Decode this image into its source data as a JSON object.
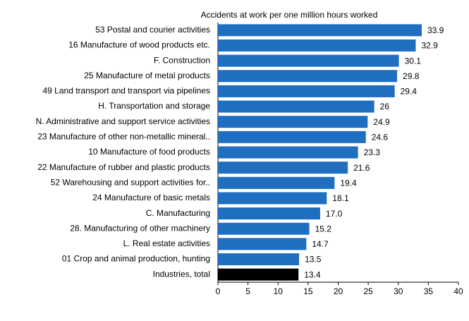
{
  "chart_data": {
    "type": "hbar",
    "x_label": "Accidents at work per one million hours worked",
    "categories": [
      "53 Postal and courier activities",
      "16 Manufacture of wood products etc.",
      "F. Construction",
      "25 Manufacture of metal products",
      "49 Land transport and transport via pipelines",
      "H. Transportation and storage",
      "N. Administrative and support service activities",
      "23 Manufacture of other non-metallic mineral..",
      "10 Manufacture of food products",
      "22 Manufacture of rubber and plastic products",
      "52 Warehousing and support activities for..",
      "24 Manufacture of basic metals",
      "C. Manufacturing",
      "28. Manufacturing of other machinery",
      "L. Real estate activities",
      "01 Crop and animal production, hunting",
      "Industries, total"
    ],
    "values": [
      33.9,
      32.9,
      30.1,
      29.8,
      29.4,
      26,
      24.9,
      24.6,
      23.3,
      21.6,
      19.4,
      18.1,
      17,
      15.2,
      14.7,
      13.5,
      13.4
    ],
    "value_labels": [
      "33.9",
      "32.9",
      "30.1",
      "29.8",
      "29.4",
      "26",
      "24.9",
      "24.6",
      "23.3",
      "21.6",
      "19.4",
      "18.1",
      "17.0",
      "15.2",
      "14.7",
      "13.5",
      "13.4"
    ],
    "colors": [
      "#1f6ec0",
      "#1f6ec0",
      "#1f6ec0",
      "#1f6ec0",
      "#1f6ec0",
      "#1f6ec0",
      "#1f6ec0",
      "#1f6ec0",
      "#1f6ec0",
      "#1f6ec0",
      "#1f6ec0",
      "#1f6ec0",
      "#1f6ec0",
      "#1f6ec0",
      "#1f6ec0",
      "#1f6ec0",
      "#000000"
    ],
    "xlim": [
      0,
      40
    ],
    "xticks": [
      0,
      5,
      10,
      15,
      20,
      25,
      30,
      35,
      40
    ]
  }
}
